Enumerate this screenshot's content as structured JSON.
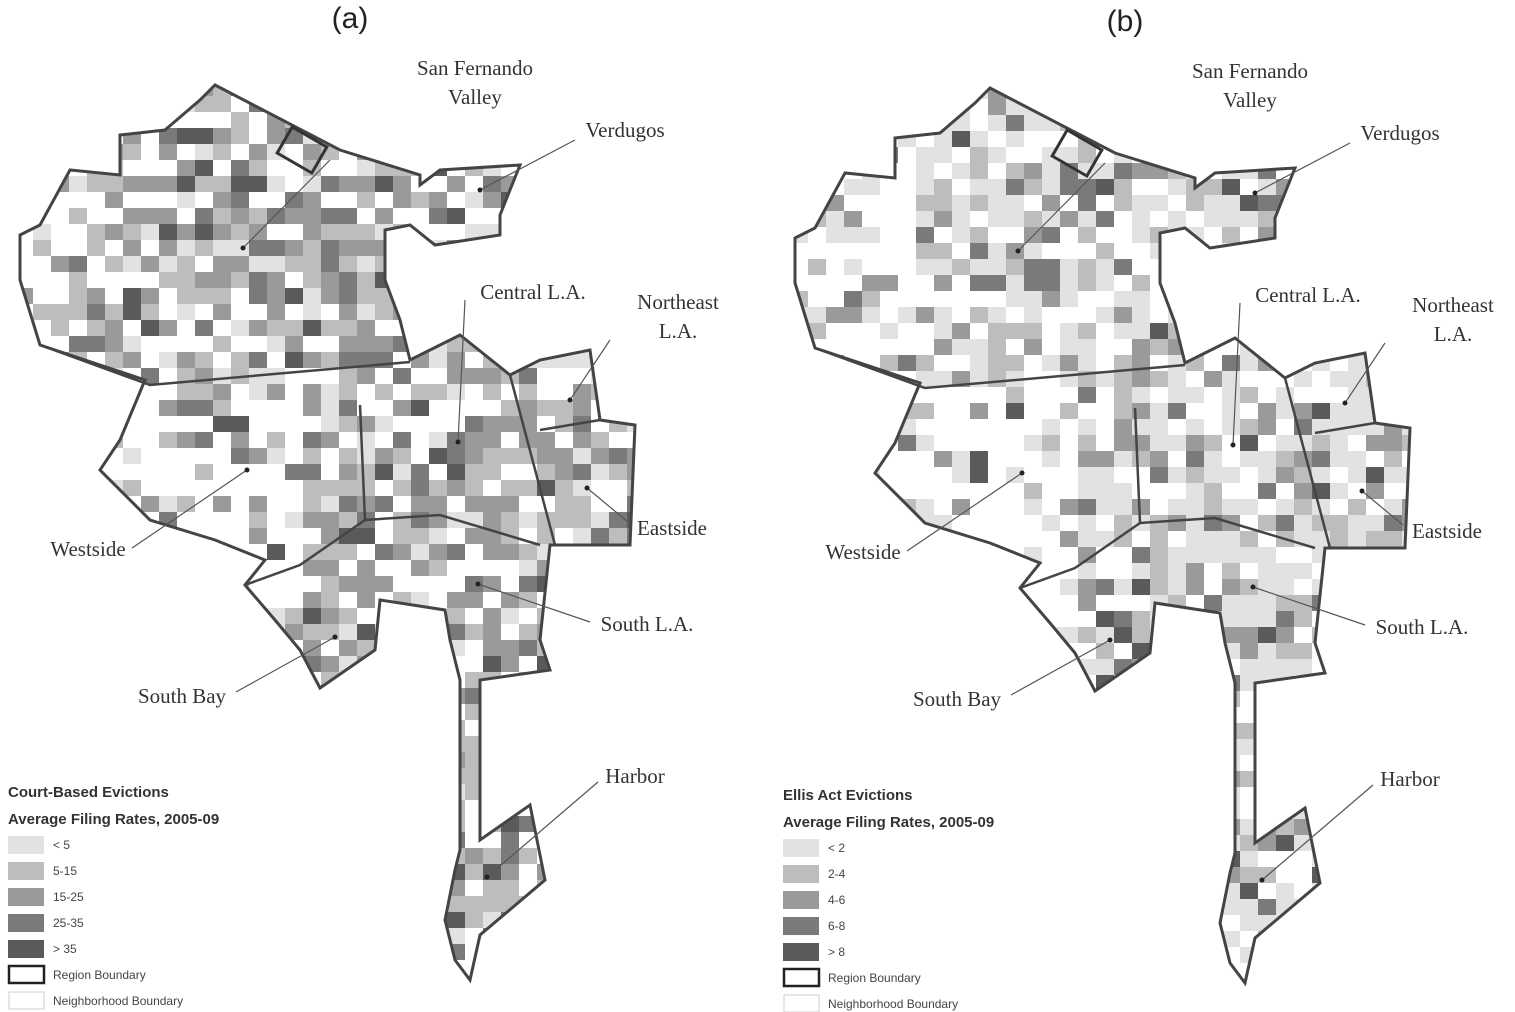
{
  "panels": [
    {
      "label": "(a)",
      "regions": [
        [
          "San Fernando",
          "Valley"
        ],
        [
          "Verdugos"
        ],
        [
          "Central L.A."
        ],
        [
          "Northeast",
          "L.A."
        ],
        [
          "Eastside"
        ],
        [
          "Westside"
        ],
        [
          "South L.A."
        ],
        [
          "South Bay"
        ],
        [
          "Harbor"
        ]
      ],
      "legend": {
        "title": "Court-Based Evictions",
        "subtitle": "Average Filing Rates, 2005-09",
        "classes": [
          "< 5",
          "5-15",
          "15-25",
          "25-35",
          "> 35"
        ],
        "colors": [
          "#e2e2e2",
          "#bdbdbd",
          "#9a9a9a",
          "#7a7a7a",
          "#5a5a5a"
        ],
        "boundaries": [
          "Region Boundary",
          "Neighborhood Boundary"
        ]
      }
    },
    {
      "label": "(b)",
      "regions": [
        [
          "San Fernando",
          "Valley"
        ],
        [
          "Verdugos"
        ],
        [
          "Central L.A."
        ],
        [
          "Northeast",
          "L.A."
        ],
        [
          "Eastside"
        ],
        [
          "Westside"
        ],
        [
          "South L.A."
        ],
        [
          "South Bay"
        ],
        [
          "Harbor"
        ]
      ],
      "legend": {
        "title": "Ellis Act Evictions",
        "subtitle": "Average Filing Rates, 2005-09",
        "classes": [
          "< 2",
          "2-4",
          "4-6",
          "6-8",
          "> 8"
        ],
        "colors": [
          "#e2e2e2",
          "#bdbdbd",
          "#9a9a9a",
          "#7a7a7a",
          "#5a5a5a"
        ],
        "boundaries": [
          "Region Boundary",
          "Neighborhood Boundary"
        ]
      }
    }
  ]
}
